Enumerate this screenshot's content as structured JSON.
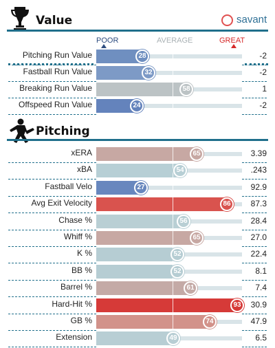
{
  "value_section": {
    "title": "Value",
    "icon": "trophy-icon",
    "logo_text": "savant"
  },
  "scale": {
    "poor": "POOR",
    "average": "AVERAGE",
    "great": "GREAT",
    "poor_color": "#2e4d80",
    "average_color": "#b0b8bc",
    "great_color": "#d62828"
  },
  "value_rows": [
    {
      "label": "Pitching Run Value",
      "percentile": 28,
      "value": "-2",
      "color": "#6f8fc0"
    },
    {
      "label": "Fastball Run Value",
      "percentile": 32,
      "value": "-2",
      "color": "#7d9ac6"
    },
    {
      "label": "Breaking Run Value",
      "percentile": 58,
      "value": "1",
      "color": "#bcc3c5"
    },
    {
      "label": "Offspeed Run Value",
      "percentile": 24,
      "value": "-2",
      "color": "#6483bc"
    }
  ],
  "pitching_section": {
    "title": "Pitching",
    "icon": "pitcher-icon"
  },
  "pitching_rows": [
    {
      "label": "xERA",
      "percentile": 65,
      "value": "3.39",
      "color": "#c7a8a3"
    },
    {
      "label": "xBA",
      "percentile": 54,
      "value": ".243",
      "color": "#b7cfd5"
    },
    {
      "label": "Fastball Velo",
      "percentile": 27,
      "value": "92.9",
      "color": "#6887be"
    },
    {
      "label": "Avg Exit Velocity",
      "percentile": 86,
      "value": "87.3",
      "color": "#d9534e"
    },
    {
      "label": "Chase %",
      "percentile": 56,
      "value": "28.4",
      "color": "#b9cfd4"
    },
    {
      "label": "Whiff %",
      "percentile": 65,
      "value": "27.0",
      "color": "#c7a8a3"
    },
    {
      "label": "K %",
      "percentile": 52,
      "value": "22.4",
      "color": "#b6cdd3"
    },
    {
      "label": "BB %",
      "percentile": 52,
      "value": "8.1",
      "color": "#b6cdd3"
    },
    {
      "label": "Barrel %",
      "percentile": 61,
      "value": "7.4",
      "color": "#c4aaa6"
    },
    {
      "label": "Hard-Hit %",
      "percentile": 93,
      "value": "30.9",
      "color": "#d63a38"
    },
    {
      "label": "GB %",
      "percentile": 74,
      "value": "47.9",
      "color": "#d2928a"
    },
    {
      "label": "Extension",
      "percentile": 49,
      "value": "6.5",
      "color": "#b8ced4"
    }
  ]
}
